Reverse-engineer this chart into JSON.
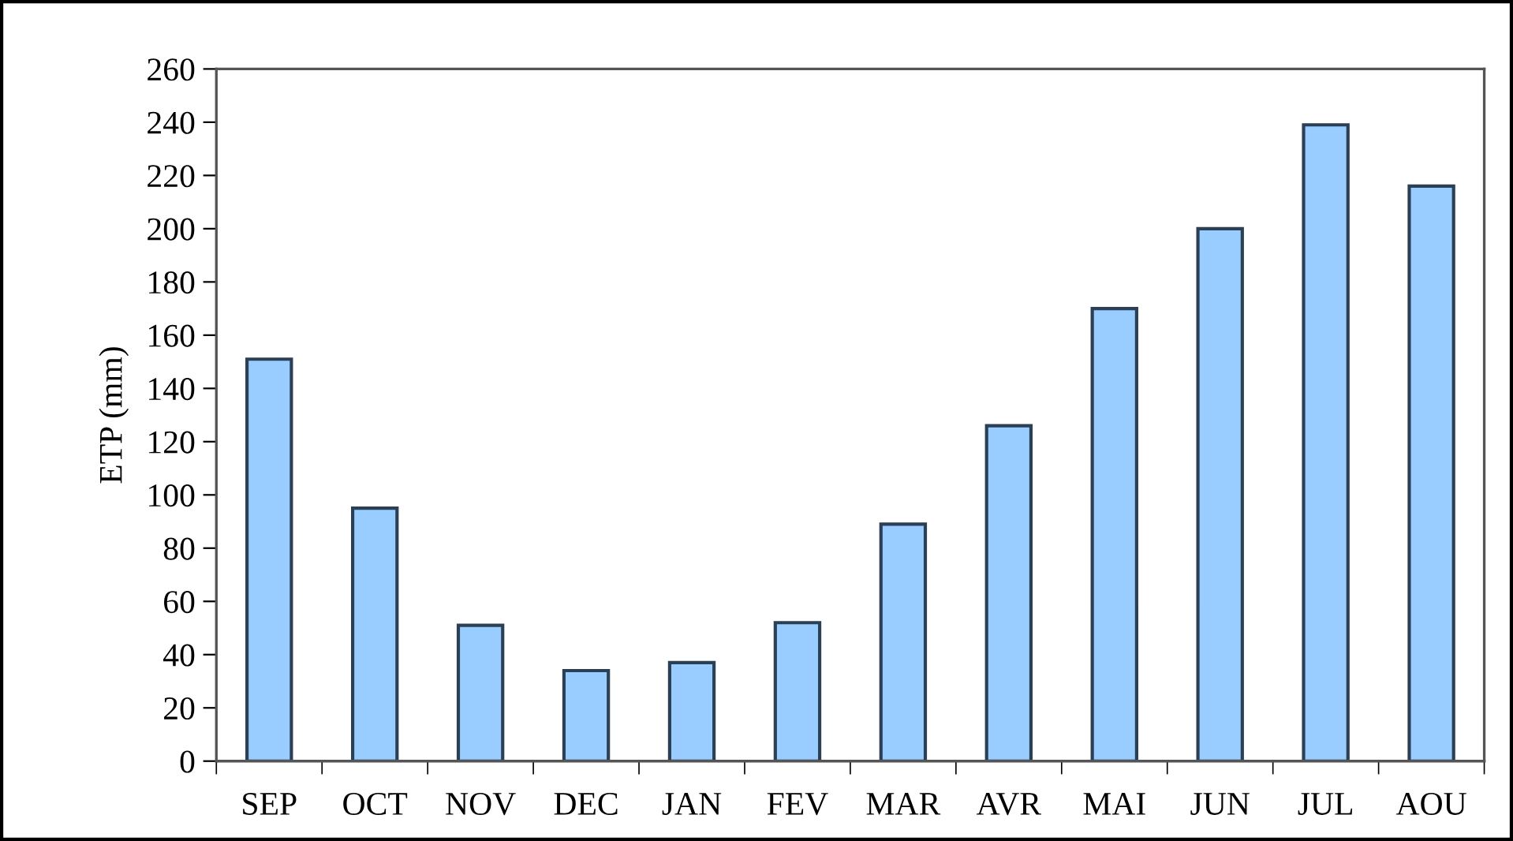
{
  "chart_data": {
    "type": "bar",
    "ylabel": "ETP (mm)",
    "categories": [
      "SEP",
      "OCT",
      "NOV",
      "DEC",
      "JAN",
      "FEV",
      "MAR",
      "AVR",
      "MAI",
      "JUN",
      "JUL",
      "AOU"
    ],
    "values": [
      151,
      95,
      51,
      34,
      37,
      52,
      89,
      126,
      170,
      200,
      239,
      216
    ],
    "color": "#99ccff",
    "ylim": [
      0,
      260
    ],
    "yticks": [
      0,
      20,
      40,
      60,
      80,
      100,
      120,
      140,
      160,
      180,
      200,
      220,
      240,
      260
    ],
    "grid": false,
    "legend": false
  }
}
